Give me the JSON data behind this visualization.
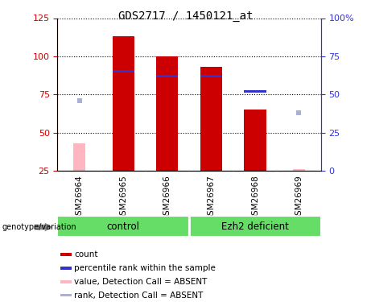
{
  "title": "GDS2717 / 1450121_at",
  "samples": [
    "GSM26964",
    "GSM26965",
    "GSM26966",
    "GSM26967",
    "GSM26968",
    "GSM26969"
  ],
  "bar_data": {
    "GSM26964": {
      "count": null,
      "rank": null,
      "absent_value": 43,
      "absent_rank": 46
    },
    "GSM26965": {
      "count": 113,
      "rank": 65,
      "absent_value": null,
      "absent_rank": null
    },
    "GSM26966": {
      "count": 100,
      "rank": 62,
      "absent_value": null,
      "absent_rank": null
    },
    "GSM26967": {
      "count": 93,
      "rank": 62,
      "absent_value": null,
      "absent_rank": null
    },
    "GSM26968": {
      "count": 65,
      "rank": 52,
      "absent_value": null,
      "absent_rank": null
    },
    "GSM26969": {
      "count": null,
      "rank": null,
      "absent_value": 26,
      "absent_rank": 38
    }
  },
  "ylim_left": [
    25,
    125
  ],
  "ylim_right": [
    0,
    100
  ],
  "yticks_left": [
    25,
    50,
    75,
    100,
    125
  ],
  "yticks_right": [
    0,
    25,
    50,
    75,
    100
  ],
  "bar_color_count": "#cc0000",
  "bar_color_rank": "#3333cc",
  "bar_color_absent_value": "#ffb6c1",
  "bar_color_absent_rank": "#aab0d8",
  "bar_width": 0.5,
  "rank_marker_size": 4,
  "grid_color": "black",
  "left_axis_color": "#cc0000",
  "right_axis_color": "#3333cc",
  "bg_label_area": "#c8c8c8",
  "bg_group_area": "#66dd66",
  "genotype_label": "genotype/variation",
  "groups": [
    {
      "name": "control",
      "start": 0,
      "end": 2
    },
    {
      "name": "Ezh2 deficient",
      "start": 3,
      "end": 5
    }
  ],
  "legend_items": [
    {
      "label": "count",
      "color": "#cc0000"
    },
    {
      "label": "percentile rank within the sample",
      "color": "#3333cc"
    },
    {
      "label": "value, Detection Call = ABSENT",
      "color": "#ffb6c1"
    },
    {
      "label": "rank, Detection Call = ABSENT",
      "color": "#aab0d8"
    }
  ]
}
